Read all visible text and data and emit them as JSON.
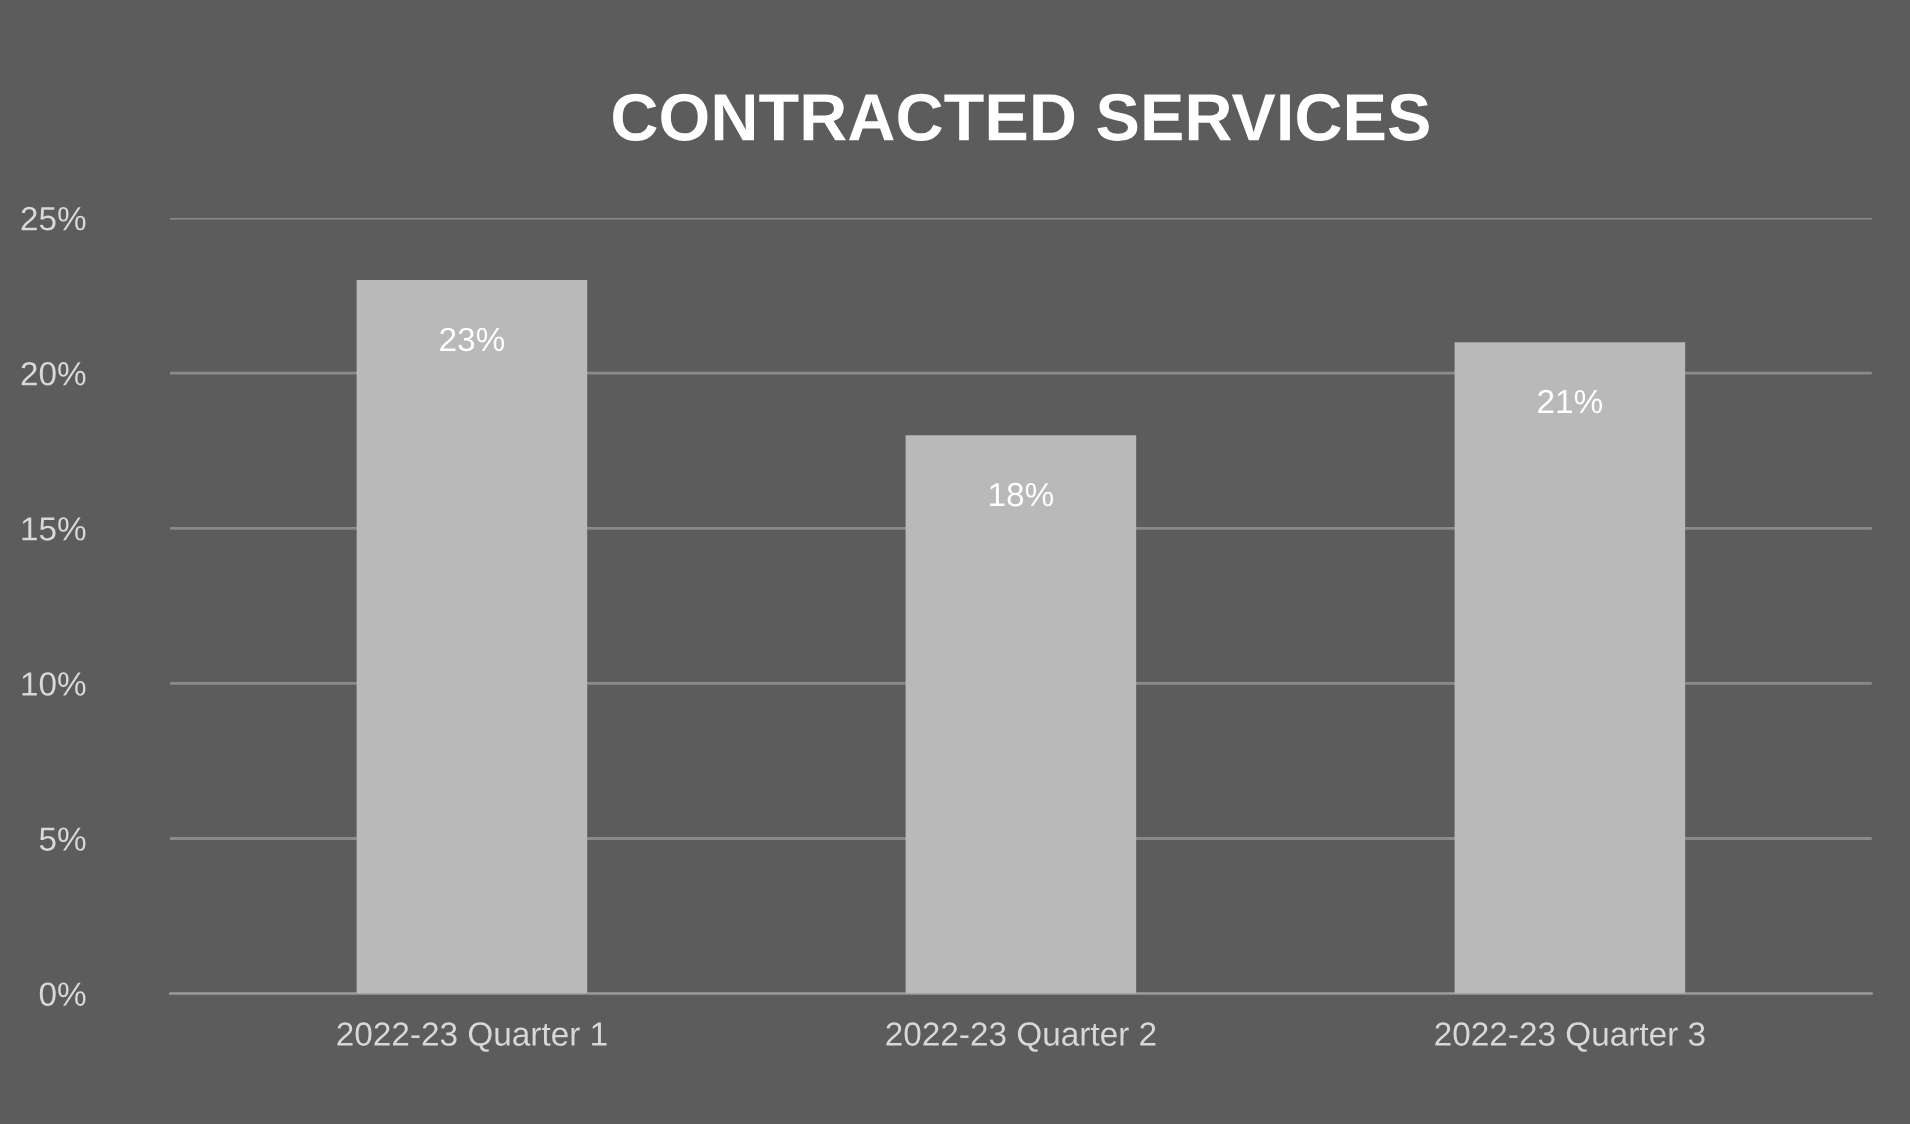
{
  "chart_data": {
    "type": "bar",
    "title": "CONTRACTED SERVICES",
    "categories": [
      "2022-23 Quarter 1",
      "2022-23 Quarter 2",
      "2022-23 Quarter 3"
    ],
    "values": [
      23,
      18,
      21
    ],
    "value_labels": [
      "23%",
      "18%",
      "21%"
    ],
    "color": "#b9b9b9",
    "ylim": [
      0,
      25
    ],
    "yticks": [
      {
        "value": 0,
        "label": "0%"
      },
      {
        "value": 5,
        "label": "5%"
      },
      {
        "value": 10,
        "label": "10%"
      },
      {
        "value": 15,
        "label": "15%"
      },
      {
        "value": 20,
        "label": "20%"
      },
      {
        "value": 25,
        "label": "25%"
      }
    ],
    "grid": "y",
    "legend": false
  }
}
